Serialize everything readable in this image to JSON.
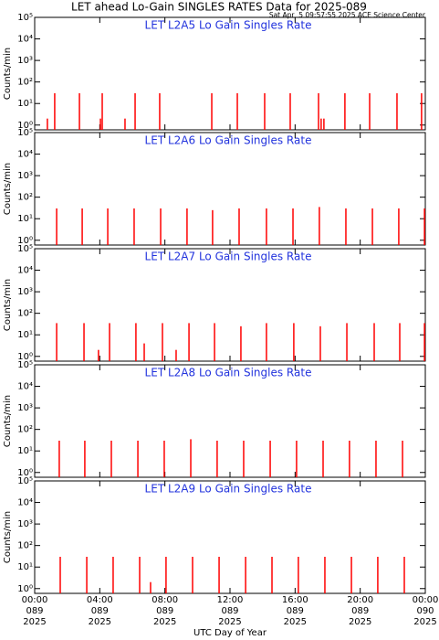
{
  "title": "LET ahead Lo-Gain SINGLES RATES Data for 2025-089",
  "subtitle": "Sat Apr  5 09:57:55 2025 ACE Science Center",
  "xlabel": "UTC Day of Year",
  "x_tick_labels": {
    "time": [
      "00:00",
      "04:00",
      "08:00",
      "12:00",
      "16:00",
      "20:00",
      "00:00"
    ],
    "day": [
      "089",
      "089",
      "089",
      "089",
      "089",
      "089",
      "090"
    ],
    "year": [
      "2025",
      "2025",
      "2025",
      "2025",
      "2025",
      "2025",
      "2025"
    ]
  },
  "chart_data": [
    {
      "type": "spike",
      "title": "LET L2A5 Lo Gain Singles Rate",
      "ylabel": "Counts/min",
      "color": "#ff0000",
      "log_scale": true,
      "xlim": [
        0,
        24
      ],
      "xticks": [
        0,
        4,
        8,
        12,
        16,
        20,
        24
      ],
      "ylim": [
        0.6,
        100000
      ],
      "yticks": [
        {
          "value": 1,
          "label": "10⁰"
        },
        {
          "value": 10,
          "label": "10¹"
        },
        {
          "value": 100,
          "label": "10²"
        },
        {
          "value": 1000,
          "label": "10³"
        },
        {
          "value": 10000,
          "label": "10⁴"
        },
        {
          "value": 100000,
          "label": "10⁵"
        }
      ],
      "x": [
        0.78,
        1.23,
        2.75,
        4.04,
        4.15,
        5.55,
        6.17,
        7.68,
        10.88,
        12.45,
        14.13,
        15.7,
        17.44,
        17.6,
        17.77,
        19.06,
        20.58,
        22.26,
        23.77
      ],
      "values": [
        2,
        30,
        30,
        2,
        30,
        2,
        30,
        30,
        30,
        30,
        30,
        30,
        30,
        2,
        2,
        30,
        30,
        30,
        30
      ]
    },
    {
      "type": "spike",
      "title": "LET L2A6 Lo Gain Singles Rate",
      "ylabel": "Counts/min",
      "color": "#ff0000",
      "log_scale": true,
      "xlim": [
        0,
        24
      ],
      "xticks": [
        0,
        4,
        8,
        12,
        16,
        20,
        24
      ],
      "ylim": [
        0.6,
        100000
      ],
      "yticks": [
        {
          "value": 1,
          "label": "10⁰"
        },
        {
          "value": 10,
          "label": "10¹"
        },
        {
          "value": 100,
          "label": "10²"
        },
        {
          "value": 1000,
          "label": "10³"
        },
        {
          "value": 10000,
          "label": "10⁴"
        },
        {
          "value": 100000,
          "label": "10⁵"
        }
      ],
      "x": [
        1.35,
        2.92,
        4.49,
        6.11,
        7.74,
        9.36,
        10.93,
        12.56,
        14.24,
        15.87,
        17.49,
        19.12,
        20.75,
        22.37,
        23.95
      ],
      "values": [
        30,
        30,
        30,
        30,
        30,
        30,
        25,
        30,
        30,
        30,
        35,
        30,
        30,
        30,
        30
      ]
    },
    {
      "type": "spike",
      "title": "LET L2A7 Lo Gain Singles Rate",
      "ylabel": "Counts/min",
      "color": "#ff0000",
      "log_scale": true,
      "xlim": [
        0,
        24
      ],
      "xticks": [
        0,
        4,
        8,
        12,
        16,
        20,
        24
      ],
      "ylim": [
        0.6,
        100000
      ],
      "yticks": [
        {
          "value": 1,
          "label": "10⁰"
        },
        {
          "value": 10,
          "label": "10¹"
        },
        {
          "value": 100,
          "label": "10²"
        },
        {
          "value": 1000,
          "label": "10³"
        },
        {
          "value": 10000,
          "label": "10⁴"
        },
        {
          "value": 100000,
          "label": "10⁵"
        }
      ],
      "x": [
        1.35,
        3.03,
        3.92,
        4.6,
        6.22,
        6.73,
        7.85,
        8.69,
        9.48,
        11.05,
        12.67,
        14.24,
        15.92,
        17.55,
        19.18,
        20.86,
        22.43,
        23.95
      ],
      "values": [
        35,
        35,
        2,
        35,
        35,
        4,
        35,
        2,
        35,
        35,
        25,
        35,
        35,
        25,
        35,
        35,
        35,
        35
      ]
    },
    {
      "type": "spike",
      "title": "LET L2A8 Lo Gain Singles Rate",
      "ylabel": "Counts/min",
      "color": "#ff0000",
      "log_scale": true,
      "xlim": [
        0,
        24
      ],
      "xticks": [
        0,
        4,
        8,
        12,
        16,
        20,
        24
      ],
      "ylim": [
        0.6,
        100000
      ],
      "yticks": [
        {
          "value": 1,
          "label": "10⁰"
        },
        {
          "value": 10,
          "label": "10¹"
        },
        {
          "value": 100,
          "label": "10²"
        },
        {
          "value": 1000,
          "label": "10³"
        },
        {
          "value": 10000,
          "label": "10⁴"
        },
        {
          "value": 100000,
          "label": "10⁵"
        }
      ],
      "x": [
        1.51,
        3.08,
        4.71,
        6.34,
        7.96,
        9.59,
        11.21,
        12.84,
        14.47,
        16.09,
        17.72,
        19.34,
        20.97,
        22.6
      ],
      "values": [
        30,
        30,
        30,
        30,
        30,
        35,
        30,
        30,
        30,
        30,
        30,
        30,
        30,
        30
      ]
    },
    {
      "type": "spike",
      "title": "LET L2A9 Lo Gain Singles Rate",
      "ylabel": "Counts/min",
      "color": "#ff0000",
      "log_scale": true,
      "xlim": [
        0,
        24
      ],
      "xticks": [
        0,
        4,
        8,
        12,
        16,
        20,
        24
      ],
      "ylim": [
        0.6,
        100000
      ],
      "yticks": [
        {
          "value": 1,
          "label": "10⁰"
        },
        {
          "value": 10,
          "label": "10¹"
        },
        {
          "value": 100,
          "label": "10²"
        },
        {
          "value": 1000,
          "label": "10³"
        },
        {
          "value": 10000,
          "label": "10⁴"
        },
        {
          "value": 100000,
          "label": "10⁵"
        }
      ],
      "x": [
        1.57,
        3.2,
        4.82,
        6.45,
        7.12,
        8.07,
        9.7,
        11.33,
        12.96,
        14.58,
        16.2,
        17.83,
        19.46,
        21.08,
        22.71
      ],
      "values": [
        30,
        30,
        30,
        30,
        2,
        30,
        30,
        30,
        30,
        30,
        30,
        30,
        30,
        30,
        30
      ]
    }
  ]
}
